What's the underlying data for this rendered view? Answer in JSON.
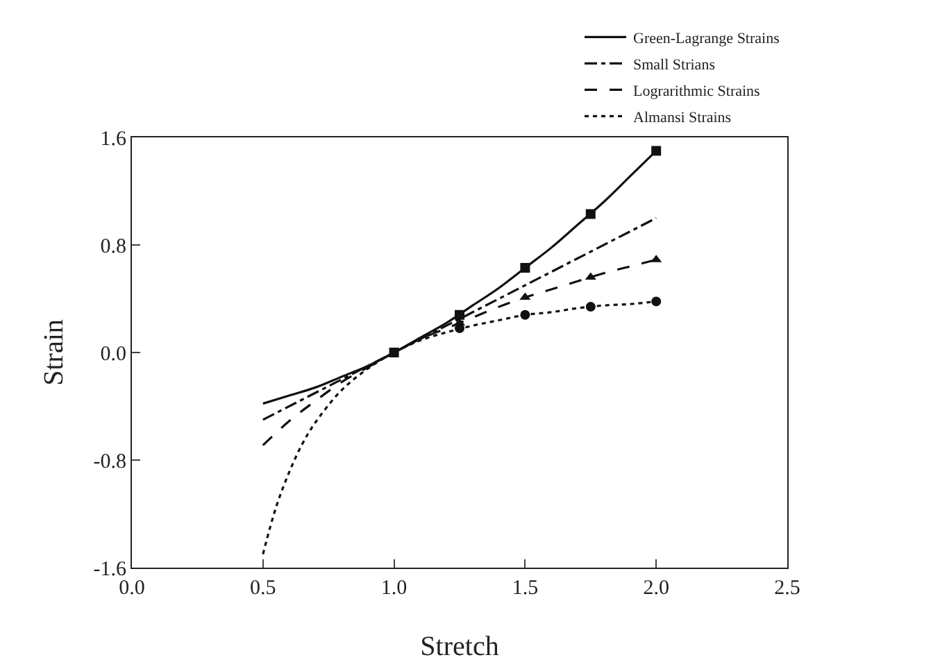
{
  "chart_data": {
    "type": "line",
    "xlabel": "Stretch",
    "ylabel": "Strain",
    "xlim": [
      0,
      2.5
    ],
    "xticks": [
      {
        "value": 0,
        "label": "0.0"
      },
      {
        "value": 0.5,
        "label": "0.5"
      },
      {
        "value": 1,
        "label": "1.0"
      },
      {
        "value": 1.5,
        "label": "1.5"
      },
      {
        "value": 2,
        "label": "2.0"
      },
      {
        "value": 2.5,
        "label": "2.5"
      }
    ],
    "ylim": [
      -1.6,
      1.6
    ],
    "yticks": [
      -1.6,
      -0.8,
      {
        "value": 0,
        "label": "0.0"
      },
      0.8,
      1.6
    ],
    "grid": false,
    "legend": "top right",
    "series": [
      {
        "name": "Green-Lagrange Strains",
        "color": "#111111",
        "line_style": "solid",
        "x": [
          0.5,
          0.6,
          0.7,
          0.8,
          0.9,
          1,
          1.1,
          1.2,
          1.3,
          1.4,
          1.5,
          1.6,
          1.7,
          1.8,
          1.9,
          2
        ],
        "values": [
          -0.38,
          -0.32,
          -0.26,
          -0.18,
          -0.1,
          0,
          0.11,
          0.22,
          0.35,
          0.48,
          0.63,
          0.78,
          0.95,
          1.12,
          1.31,
          1.5
        ]
      },
      {
        "name": "Small Strians",
        "color": "#111111",
        "line_style": "dashdot",
        "x": [
          0.5,
          2
        ],
        "values": [
          -0.5,
          1
        ]
      },
      {
        "name": "Lograrithmic Strains",
        "color": "#111111",
        "line_style": "dashed",
        "x": [
          0.5,
          0.6,
          0.7,
          0.8,
          0.9,
          1,
          1.1,
          1.2,
          1.3,
          1.4,
          1.5,
          1.6,
          1.7,
          1.8,
          1.9,
          2
        ],
        "values": [
          -0.69,
          -0.51,
          -0.36,
          -0.22,
          -0.11,
          0,
          0.1,
          0.18,
          0.26,
          0.34,
          0.41,
          0.47,
          0.53,
          0.59,
          0.64,
          0.69
        ]
      },
      {
        "name": "Almansi Strains",
        "color": "#111111",
        "line_style": "dotted",
        "x": [
          0.5,
          0.55,
          0.6,
          0.65,
          0.7,
          0.8,
          0.9,
          1,
          1.1,
          1.2,
          1.3,
          1.4,
          1.5,
          1.6,
          1.7,
          1.8,
          1.9,
          2
        ],
        "values": [
          -1.5,
          -1.15,
          -0.89,
          -0.68,
          -0.52,
          -0.28,
          -0.12,
          0,
          0.09,
          0.15,
          0.2,
          0.24,
          0.28,
          0.3,
          0.33,
          0.35,
          0.36,
          0.38
        ]
      },
      {
        "type": "scatter",
        "marker": "square",
        "color": "#111111",
        "x": [
          1,
          1.25,
          1.5,
          1.75,
          2
        ],
        "values": [
          0,
          0.28,
          0.63,
          1.03,
          1.5
        ]
      },
      {
        "type": "scatter",
        "marker": "triangle",
        "color": "#111111",
        "x": [
          1.25,
          1.5,
          1.75,
          2
        ],
        "values": [
          0.22,
          0.41,
          0.56,
          0.69
        ]
      },
      {
        "type": "scatter",
        "marker": "circle",
        "color": "#111111",
        "x": [
          1.25,
          1.5,
          1.75,
          2
        ],
        "values": [
          0.18,
          0.28,
          0.34,
          0.38
        ]
      }
    ]
  }
}
